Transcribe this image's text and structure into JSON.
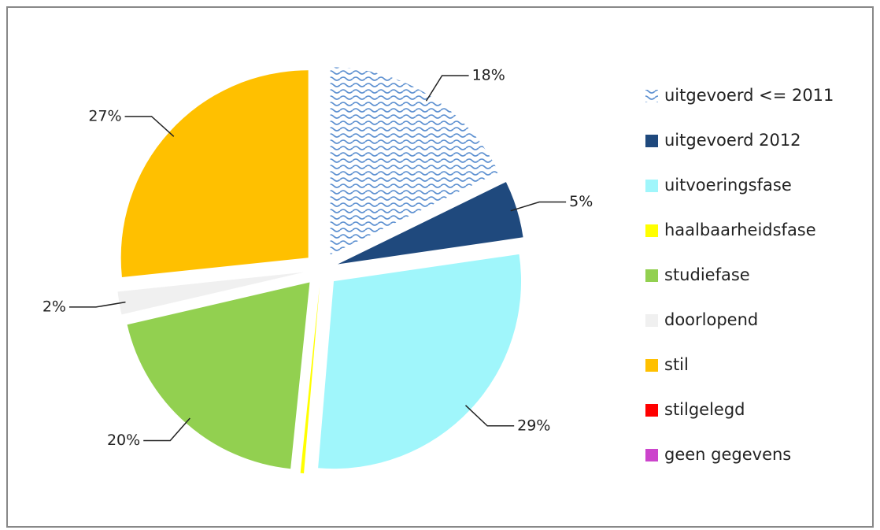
{
  "chart_data": {
    "type": "pie",
    "categories": [
      "uitgevoerd <= 2011",
      "uitgevoerd 2012",
      "uitvoeringsfase",
      "haalbaarheidsfase",
      "studiefase",
      "doorlopend",
      "stil",
      "stilgelegd",
      "geen gegevens"
    ],
    "values": [
      18,
      5,
      29,
      0.3,
      20,
      2,
      27,
      0,
      0
    ],
    "value_labels": [
      "18%",
      "5%",
      "29%",
      null,
      "20%",
      "2%",
      "27%",
      null,
      null
    ],
    "colors": [
      "pattern",
      "#1f497d",
      "#a0f6fb",
      "#ffff00",
      "#92d050",
      "#f0f0f0",
      "#ffc000",
      "#ff0000",
      "#cc44cc"
    ],
    "legend": "right"
  }
}
